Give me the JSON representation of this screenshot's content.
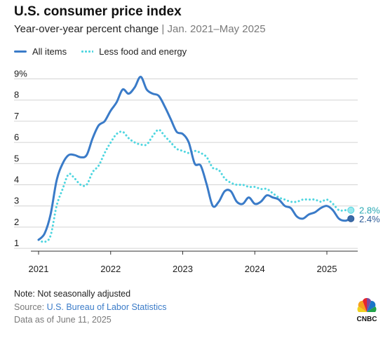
{
  "header": {
    "title": "U.S. consumer price index",
    "subtitle_main": "Year-over-year percent change",
    "subtitle_sep": " | ",
    "subtitle_range": "Jan. 2021–May 2025"
  },
  "legend": {
    "all_items": "All items",
    "core": "Less food and energy"
  },
  "footer": {
    "note": "Note: Not seasonally adjusted",
    "source_label": "Source: ",
    "source_name": "U.S. Bureau of Labor Statistics",
    "as_of": "Data as of June 11, 2025"
  },
  "logo": {
    "text": "CNBC",
    "icon": "peacock-icon"
  },
  "colors": {
    "all_items": "#3a7bc8",
    "core": "#4fd6e0",
    "grid": "#d4d4d4",
    "tick": "#1c1c1c"
  },
  "chart_data": {
    "type": "line",
    "title": "U.S. consumer price index",
    "subtitle": "Year-over-year percent change | Jan. 2021–May 2025",
    "x_start": "2021-01",
    "x_end": "2025-05",
    "x_ticks": [
      "2021",
      "2022",
      "2023",
      "2024",
      "2025"
    ],
    "y_ticks": [
      "9%",
      "8",
      "7",
      "6",
      "5",
      "4",
      "3",
      "2",
      "1"
    ],
    "ylim": [
      1,
      9
    ],
    "grid": true,
    "legend_position": "top-left",
    "series": [
      {
        "name": "All items",
        "style": "solid",
        "end_label": "2.4%",
        "values": [
          1.4,
          1.7,
          2.6,
          4.2,
          5.0,
          5.4,
          5.4,
          5.3,
          5.4,
          6.2,
          6.8,
          7.0,
          7.5,
          7.9,
          8.5,
          8.3,
          8.6,
          9.1,
          8.5,
          8.3,
          8.2,
          7.7,
          7.1,
          6.5,
          6.4,
          6.0,
          5.0,
          4.9,
          4.0,
          3.0,
          3.2,
          3.7,
          3.7,
          3.2,
          3.1,
          3.4,
          3.1,
          3.2,
          3.5,
          3.4,
          3.3,
          3.0,
          2.9,
          2.5,
          2.4,
          2.6,
          2.7,
          2.9,
          3.0,
          2.8,
          2.4,
          2.3,
          2.4
        ]
      },
      {
        "name": "Less food and energy",
        "style": "dotted",
        "end_label": "2.8%",
        "values": [
          1.4,
          1.3,
          1.6,
          3.0,
          3.8,
          4.5,
          4.3,
          4.0,
          4.0,
          4.6,
          4.9,
          5.5,
          6.0,
          6.4,
          6.5,
          6.2,
          6.0,
          5.9,
          5.9,
          6.3,
          6.6,
          6.3,
          6.0,
          5.7,
          5.6,
          5.5,
          5.6,
          5.5,
          5.3,
          4.8,
          4.7,
          4.3,
          4.1,
          4.0,
          4.0,
          3.9,
          3.9,
          3.8,
          3.8,
          3.6,
          3.4,
          3.3,
          3.2,
          3.2,
          3.3,
          3.3,
          3.3,
          3.2,
          3.3,
          3.1,
          2.8,
          2.8,
          2.8
        ]
      }
    ]
  }
}
